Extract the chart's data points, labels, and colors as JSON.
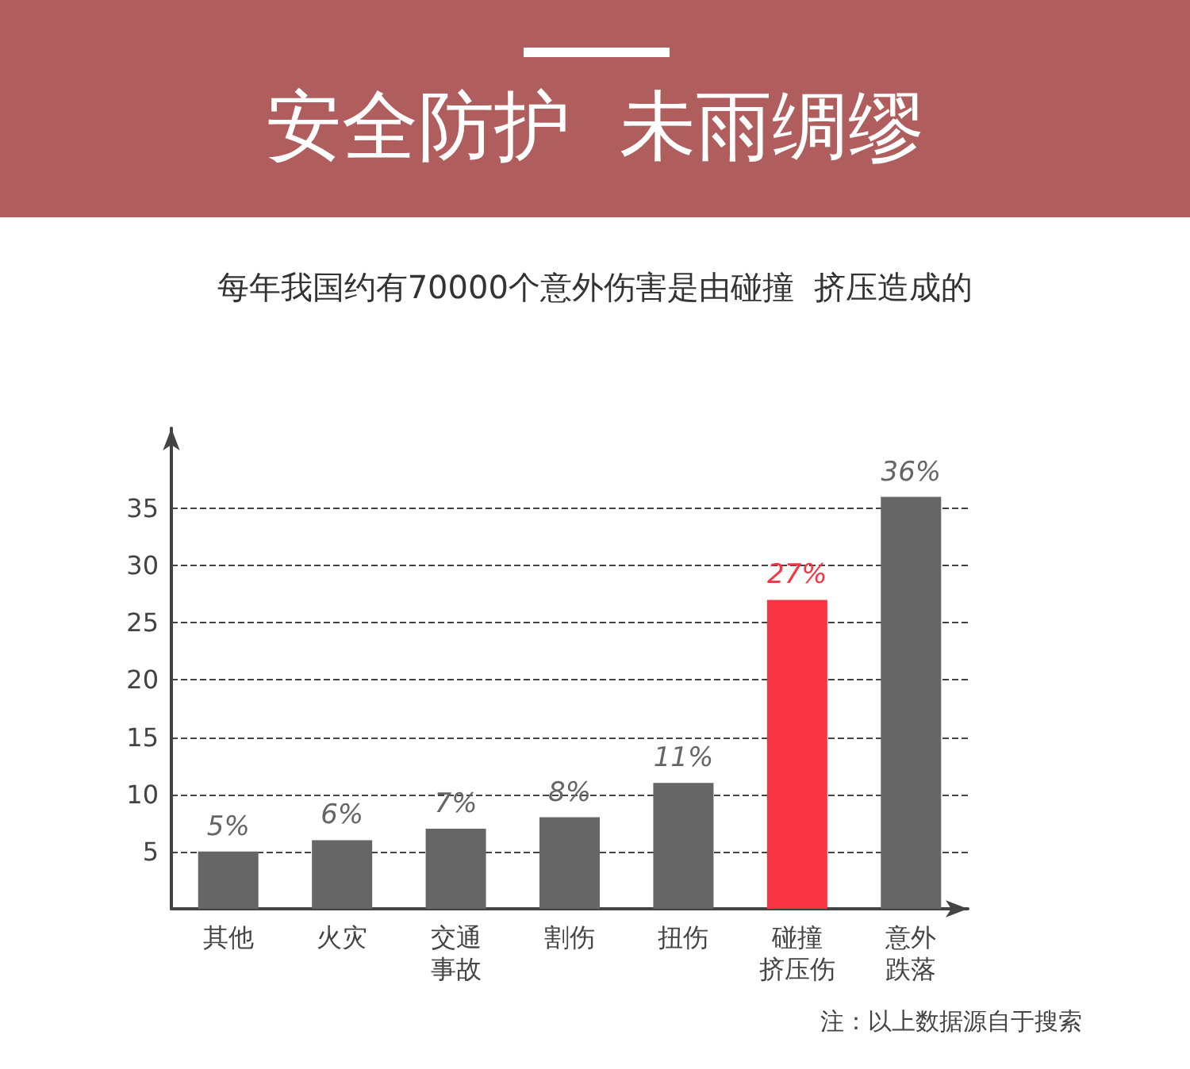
{
  "chart_data": {
    "type": "bar",
    "title": "安全防护  未雨绸缪",
    "subtitle": "每年我国约有70000个意外伤害是由碰撞  挤压造成的",
    "categories": [
      "其他",
      "火灾",
      "交通事故",
      "割伤",
      "扭伤",
      "碰撞挤压伤",
      "意外跌落"
    ],
    "values": [
      5,
      6,
      7,
      8,
      11,
      27,
      36
    ],
    "colors": [
      "#666666",
      "#666666",
      "#666666",
      "#666666",
      "#666666",
      "#f93445",
      "#666666"
    ],
    "value_labels": [
      "5%",
      "6%",
      "7%",
      "8%",
      "11%",
      "27%",
      "36%"
    ],
    "ylim": [
      0,
      42
    ],
    "yticks": [
      5,
      10,
      15,
      20,
      25,
      30,
      35
    ],
    "grid": "y",
    "annotations": [
      "注：以上数据源自于搜索"
    ]
  }
}
